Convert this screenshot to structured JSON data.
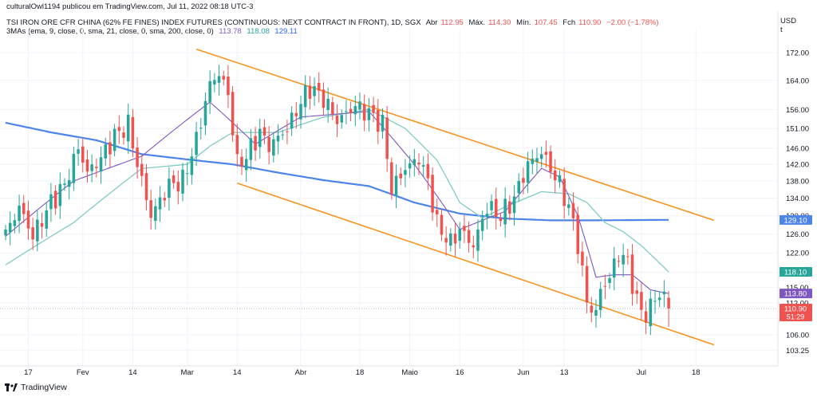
{
  "publisher_line": "culturalOwl1194 publicou em TradingView.com, Jul 11, 2022 08:18 UTC-3",
  "legend": {
    "instrument": "TSI IRON ORE CFR CHINA (62% FE FINES) INDEX FUTURES (CONTINUOUS: NEXT CONTRACT IN FRONT), 1D, SGX",
    "open_label": "Abr",
    "open_value": "112.95",
    "high_label": "Máx.",
    "high_value": "114.30",
    "low_label": "Mín.",
    "low_value": "107.45",
    "close_label": "Fch",
    "close_value": "110.90",
    "change": "−2.00 (−1.78%)",
    "ma_label": "3MAs (ema, 9, close, 0, sma, 21, close, 0, sma, 200, close, 0)",
    "ma_values": [
      "113.78",
      "118.08",
      "129.11"
    ]
  },
  "currency": "USD",
  "currency_sub": "t",
  "footer_brand": "TradingView",
  "colors": {
    "up": "#26a69a",
    "down": "#ef5350",
    "ema9": "#7e57c2",
    "sma21": "#80cbc4",
    "sma200": "#4c84e8",
    "channel": "#f7931e",
    "grid": "#f0f3fa",
    "axis_text": "#131722"
  },
  "chart_data": {
    "type": "candlestick",
    "y_scale": "log",
    "ylim": [
      100.5,
      177
    ],
    "x_range": [
      0,
      169
    ],
    "y_ticks": [
      "172.00",
      "164.00",
      "156.00",
      "151.00",
      "146.00",
      "142.00",
      "138.00",
      "134.00",
      "130.00",
      "126.00",
      "122.00",
      "118.00",
      "115.00",
      "112.00",
      "109.00",
      "106.00",
      "103.25"
    ],
    "x_ticks": [
      {
        "label": "17",
        "bar": 5
      },
      {
        "label": "Fev",
        "bar": 17
      },
      {
        "label": "14",
        "bar": 28
      },
      {
        "label": "Mar",
        "bar": 40
      },
      {
        "label": "14",
        "bar": 51
      },
      {
        "label": "Abr",
        "bar": 65
      },
      {
        "label": "18",
        "bar": 78
      },
      {
        "label": "Maio",
        "bar": 89
      },
      {
        "label": "16",
        "bar": 100
      },
      {
        "label": "Jun",
        "bar": 114
      },
      {
        "label": "13",
        "bar": 123
      },
      {
        "label": "Jul",
        "bar": 140
      },
      {
        "label": "18",
        "bar": 152
      }
    ],
    "price_tags": [
      {
        "label": "129.10",
        "value": 129.1,
        "color": "#4c84e8"
      },
      {
        "label": "118.10",
        "value": 118.1,
        "color": "#26a69a"
      },
      {
        "label": "113.80",
        "value": 113.8,
        "color": "#7e57c2"
      },
      {
        "label": "110.90",
        "value": 110.9,
        "color": "#ef5350",
        "sub": "51:29"
      }
    ],
    "last_price": 110.9,
    "close_keyframes": [
      [
        0,
        126.0
      ],
      [
        3,
        132.0
      ],
      [
        6,
        125.5
      ],
      [
        10,
        133.0
      ],
      [
        13,
        137.0
      ],
      [
        16,
        146.0
      ],
      [
        18,
        140.0
      ],
      [
        21,
        143.5
      ],
      [
        24,
        149.0
      ],
      [
        27,
        152.0
      ],
      [
        29,
        142.0
      ],
      [
        32,
        130.0
      ],
      [
        36,
        137.0
      ],
      [
        39,
        138.0
      ],
      [
        42,
        148.0
      ],
      [
        45,
        163.0
      ],
      [
        47,
        166.0
      ],
      [
        49,
        160.0
      ],
      [
        51,
        142.0
      ],
      [
        53,
        144.0
      ],
      [
        56,
        150.0
      ],
      [
        58,
        146.5
      ],
      [
        62,
        151.0
      ],
      [
        65,
        158.0
      ],
      [
        67,
        162.0
      ],
      [
        70,
        159.0
      ],
      [
        73,
        153.0
      ],
      [
        77,
        157.0
      ],
      [
        80,
        155.0
      ],
      [
        83,
        152.0
      ],
      [
        85,
        136.0
      ],
      [
        88,
        141.0
      ],
      [
        91,
        143.5
      ],
      [
        93,
        138.0
      ],
      [
        95,
        128.0
      ],
      [
        98,
        124.0
      ],
      [
        100,
        127.0
      ],
      [
        103,
        123.5
      ],
      [
        106,
        132.0
      ],
      [
        109,
        130.0
      ],
      [
        112,
        134.0
      ],
      [
        115,
        142.0
      ],
      [
        118,
        145.0
      ],
      [
        120,
        141.0
      ],
      [
        122,
        137.0
      ],
      [
        124,
        132.0
      ],
      [
        126,
        124.0
      ],
      [
        128,
        112.0
      ],
      [
        130,
        110.0
      ],
      [
        131,
        114.5
      ],
      [
        133,
        117.0
      ],
      [
        135,
        122.0
      ],
      [
        137,
        120.0
      ],
      [
        139,
        112.0
      ],
      [
        141,
        109.5
      ],
      [
        143,
        113.0
      ],
      [
        145,
        113.7
      ],
      [
        146,
        110.9
      ]
    ],
    "ema9": [
      [
        0,
        125.5
      ],
      [
        15,
        138.0
      ],
      [
        30,
        144.0
      ],
      [
        45,
        158.0
      ],
      [
        55,
        147.0
      ],
      [
        65,
        154.0
      ],
      [
        80,
        155.5
      ],
      [
        90,
        142.0
      ],
      [
        100,
        127.0
      ],
      [
        110,
        131.0
      ],
      [
        118,
        141.0
      ],
      [
        122,
        139.0
      ],
      [
        126,
        130.0
      ],
      [
        130,
        117.0
      ],
      [
        134,
        117.5
      ],
      [
        138,
        117.5
      ],
      [
        142,
        114.5
      ],
      [
        146,
        113.78
      ]
    ],
    "sma21": [
      [
        0,
        119.5
      ],
      [
        15,
        128.5
      ],
      [
        30,
        141.0
      ],
      [
        40,
        142.0
      ],
      [
        45,
        146.5
      ],
      [
        50,
        150.0
      ],
      [
        60,
        150.0
      ],
      [
        70,
        154.0
      ],
      [
        80,
        156.0
      ],
      [
        88,
        151.0
      ],
      [
        95,
        143.0
      ],
      [
        100,
        133.0
      ],
      [
        105,
        129.5
      ],
      [
        110,
        132.0
      ],
      [
        118,
        135.5
      ],
      [
        124,
        135.0
      ],
      [
        128,
        133.0
      ],
      [
        132,
        128.5
      ],
      [
        136,
        126.5
      ],
      [
        140,
        123.5
      ],
      [
        146,
        118.08
      ]
    ],
    "sma200": [
      [
        0,
        152.5
      ],
      [
        10,
        150.0
      ],
      [
        20,
        148.0
      ],
      [
        30,
        144.5
      ],
      [
        40,
        143.2
      ],
      [
        50,
        142.0
      ],
      [
        60,
        140.0
      ],
      [
        70,
        138.2
      ],
      [
        80,
        136.8
      ],
      [
        90,
        133.0
      ],
      [
        100,
        130.5
      ],
      [
        110,
        129.4
      ],
      [
        120,
        129.0
      ],
      [
        130,
        129.0
      ],
      [
        146,
        129.11
      ]
    ],
    "channel_upper": [
      [
        42,
        173.0
      ],
      [
        156,
        129.0
      ]
    ],
    "channel_lower": [
      [
        51,
        137.5
      ],
      [
        156,
        104.2
      ]
    ]
  }
}
